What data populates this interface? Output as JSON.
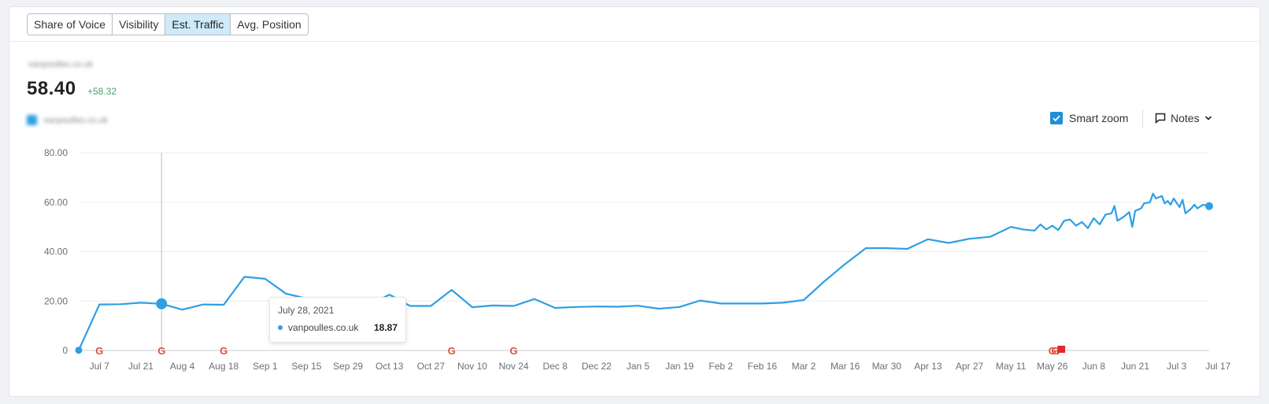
{
  "tabs": [
    {
      "label": "Share of Voice",
      "active": false
    },
    {
      "label": "Visibility",
      "active": false
    },
    {
      "label": "Est. Traffic",
      "active": true
    },
    {
      "label": "Avg. Position",
      "active": false
    }
  ],
  "summary": {
    "domain": "vanpoulles.co.uk",
    "value": "58.40",
    "delta": "+58.32"
  },
  "legend": {
    "label": "vanpoulles.co.uk",
    "checked": true,
    "color": "#2f9fe3"
  },
  "controls": {
    "smart_zoom_label": "Smart zoom",
    "smart_zoom_checked": true,
    "notes_label": "Notes"
  },
  "tooltip": {
    "date": "July 28, 2021",
    "series": "vanpoulles.co.uk",
    "value": "18.87"
  },
  "chart_data": {
    "type": "line",
    "ylim": [
      0,
      80
    ],
    "y_ticks": [
      "80.00",
      "60.00",
      "40.00",
      "20.00",
      "0"
    ],
    "x_tick_labels": [
      "Jul 7",
      "Jul 21",
      "Aug 4",
      "Aug 18",
      "Sep 1",
      "Sep 15",
      "Sep 29",
      "Oct 13",
      "Oct 27",
      "Nov 10",
      "Nov 24",
      "Dec 8",
      "Dec 22",
      "Jan 5",
      "Jan 19",
      "Feb 2",
      "Feb 16",
      "Mar 2",
      "Mar 16",
      "Mar 30",
      "Apr 13",
      "Apr 27",
      "May 11",
      "May 26",
      "Jun 8",
      "Jun 21",
      "Jul 3",
      "Jul 17"
    ],
    "series": [
      {
        "color": "#2f9fe3",
        "points": [
          [
            "2021-06-30",
            0.08
          ],
          [
            "2021-07-07",
            18.6
          ],
          [
            "2021-07-14",
            18.7
          ],
          [
            "2021-07-21",
            19.3
          ],
          [
            "2021-07-28",
            18.87
          ],
          [
            "2021-08-04",
            16.5
          ],
          [
            "2021-08-11",
            18.6
          ],
          [
            "2021-08-18",
            18.5
          ],
          [
            "2021-08-25",
            29.8
          ],
          [
            "2021-09-01",
            29.0
          ],
          [
            "2021-09-08",
            23.0
          ],
          [
            "2021-09-15",
            21.0
          ],
          [
            "2021-09-22",
            17.5
          ],
          [
            "2021-09-29",
            19.7
          ],
          [
            "2021-10-06",
            18.4
          ],
          [
            "2021-10-13",
            22.6
          ],
          [
            "2021-10-20",
            18.0
          ],
          [
            "2021-10-27",
            18.0
          ],
          [
            "2021-11-03",
            24.5
          ],
          [
            "2021-11-10",
            17.5
          ],
          [
            "2021-11-17",
            18.2
          ],
          [
            "2021-11-24",
            18.0
          ],
          [
            "2021-12-01",
            20.8
          ],
          [
            "2021-12-08",
            17.2
          ],
          [
            "2021-12-15",
            17.6
          ],
          [
            "2021-12-22",
            17.8
          ],
          [
            "2021-12-29",
            17.7
          ],
          [
            "2022-01-05",
            18.1
          ],
          [
            "2022-01-12",
            16.9
          ],
          [
            "2022-01-19",
            17.6
          ],
          [
            "2022-01-26",
            20.2
          ],
          [
            "2022-02-02",
            19.0
          ],
          [
            "2022-02-09",
            19.0
          ],
          [
            "2022-02-16",
            19.0
          ],
          [
            "2022-02-23",
            19.3
          ],
          [
            "2022-03-02",
            20.4
          ],
          [
            "2022-03-09",
            28.0
          ],
          [
            "2022-03-16",
            35.0
          ],
          [
            "2022-03-23",
            41.4
          ],
          [
            "2022-03-30",
            41.4
          ],
          [
            "2022-04-06",
            41.1
          ],
          [
            "2022-04-13",
            45.0
          ],
          [
            "2022-04-20",
            43.5
          ],
          [
            "2022-04-27",
            45.2
          ],
          [
            "2022-05-04",
            46.0
          ],
          [
            "2022-05-11",
            50.0
          ],
          [
            "2022-05-15",
            49.0
          ],
          [
            "2022-05-19",
            48.5
          ],
          [
            "2022-05-21",
            51.0
          ],
          [
            "2022-05-23",
            49.0
          ],
          [
            "2022-05-25",
            50.5
          ],
          [
            "2022-05-27",
            48.7
          ],
          [
            "2022-05-29",
            52.5
          ],
          [
            "2022-05-31",
            53.0
          ],
          [
            "2022-06-02",
            50.5
          ],
          [
            "2022-06-04",
            52.0
          ],
          [
            "2022-06-06",
            49.5
          ],
          [
            "2022-06-08",
            53.5
          ],
          [
            "2022-06-10",
            51.0
          ],
          [
            "2022-06-12",
            55.0
          ],
          [
            "2022-06-14",
            55.5
          ],
          [
            "2022-06-15",
            58.5
          ],
          [
            "2022-06-16",
            52.5
          ],
          [
            "2022-06-18",
            54.0
          ],
          [
            "2022-06-20",
            56.0
          ],
          [
            "2022-06-21",
            50.0
          ],
          [
            "2022-06-22",
            56.5
          ],
          [
            "2022-06-24",
            57.5
          ],
          [
            "2022-06-25",
            59.5
          ],
          [
            "2022-06-27",
            60.0
          ],
          [
            "2022-06-28",
            63.5
          ],
          [
            "2022-06-29",
            61.5
          ],
          [
            "2022-07-01",
            62.5
          ],
          [
            "2022-07-02",
            59.5
          ],
          [
            "2022-07-03",
            60.5
          ],
          [
            "2022-07-04",
            59.0
          ],
          [
            "2022-07-05",
            61.5
          ],
          [
            "2022-07-07",
            58.0
          ],
          [
            "2022-07-08",
            61.0
          ],
          [
            "2022-07-09",
            55.5
          ],
          [
            "2022-07-11",
            57.5
          ],
          [
            "2022-07-12",
            59.0
          ],
          [
            "2022-07-13",
            57.5
          ],
          [
            "2022-07-15",
            59.0
          ],
          [
            "2022-07-17",
            58.4
          ]
        ]
      }
    ],
    "google_update_markers": [
      "2021-07-07",
      "2021-07-28",
      "2021-08-18",
      "2021-11-03",
      "2021-11-24",
      "2022-05-25",
      "2022-05-26"
    ],
    "note_markers": [
      "2022-05-28"
    ],
    "hover_date": "2021-07-28",
    "grid": true
  }
}
